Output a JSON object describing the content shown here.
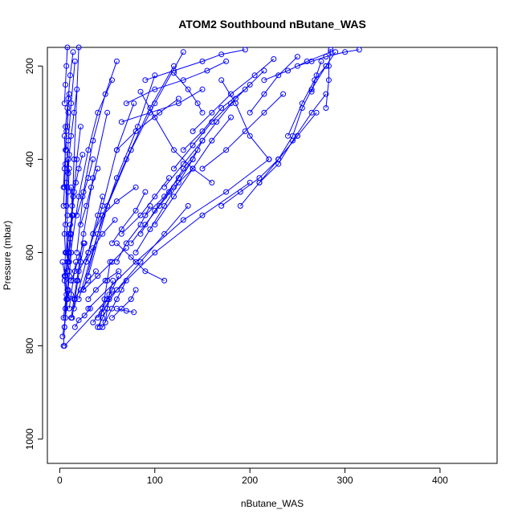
{
  "chart_data": {
    "type": "line",
    "title": "ATOM2 Southbound nButane_WAS",
    "xlabel": "nButane_WAS",
    "ylabel": "Pressure (mbar)",
    "xlim": [
      -13,
      460
    ],
    "ylim": [
      1052,
      160
    ],
    "y_reversed": true,
    "x_ticks": [
      0,
      100,
      200,
      300,
      400
    ],
    "y_ticks": [
      200,
      400,
      600,
      800,
      1000
    ],
    "grid": false,
    "marker": "open-circle",
    "color": "#0000ff",
    "series": [
      {
        "x": [
          4,
          5,
          6,
          8,
          3
        ],
        "y": [
          800,
          760,
          720,
          680,
          620
        ]
      },
      {
        "x": [
          3,
          6,
          7,
          5,
          9,
          12
        ],
        "y": [
          780,
          740,
          700,
          660,
          600,
          560
        ]
      },
      {
        "x": [
          5,
          8,
          10,
          7,
          11
        ],
        "y": [
          760,
          700,
          640,
          600,
          540
        ]
      },
      {
        "x": [
          6,
          9,
          8,
          10,
          13,
          15,
          20
        ],
        "y": [
          720,
          680,
          640,
          600,
          520,
          400,
          160
        ]
      },
      {
        "x": [
          4,
          7,
          6,
          8,
          9
        ],
        "y": [
          740,
          690,
          650,
          620,
          560
        ]
      },
      {
        "x": [
          8,
          10,
          12,
          11,
          14
        ],
        "y": [
          700,
          650,
          600,
          560,
          520
        ]
      },
      {
        "x": [
          5,
          6,
          5,
          7,
          8,
          9
        ],
        "y": [
          650,
          600,
          560,
          500,
          460,
          400
        ]
      },
      {
        "x": [
          9,
          11,
          13,
          12
        ],
        "y": [
          620,
          560,
          500,
          460
        ]
      },
      {
        "x": [
          4,
          5,
          6,
          5
        ],
        "y": [
          500,
          460,
          410,
          350
        ]
      },
      {
        "x": [
          7,
          8,
          9,
          10
        ],
        "y": [
          600,
          520,
          470,
          420
        ]
      },
      {
        "x": [
          11,
          13,
          15,
          18,
          22
        ],
        "y": [
          570,
          520,
          470,
          400,
          330
        ]
      },
      {
        "x": [
          6,
          7,
          9,
          12,
          16
        ],
        "y": [
          540,
          450,
          360,
          280,
          190
        ]
      },
      {
        "x": [
          10,
          12,
          14,
          17
        ],
        "y": [
          720,
          690,
          660,
          620
        ]
      },
      {
        "x": [
          13,
          16,
          19,
          22,
          26
        ],
        "y": [
          740,
          700,
          660,
          620,
          580
        ]
      },
      {
        "x": [
          5,
          6,
          7,
          8
        ],
        "y": [
          280,
          240,
          200,
          160
        ]
      },
      {
        "x": [
          8,
          9,
          11,
          14
        ],
        "y": [
          330,
          270,
          220,
          170
        ]
      },
      {
        "x": [
          7,
          6,
          8,
          10
        ],
        "y": [
          380,
          330,
          290,
          260
        ]
      },
      {
        "x": [
          9,
          10,
          12,
          15,
          18
        ],
        "y": [
          430,
          390,
          350,
          300,
          250
        ]
      },
      {
        "x": [
          4,
          5,
          6,
          7,
          9
        ],
        "y": [
          460,
          420,
          380,
          340,
          300
        ]
      },
      {
        "x": [
          12,
          18,
          25,
          35,
          50
        ],
        "y": [
          740,
          660,
          560,
          440,
          300
        ]
      },
      {
        "x": [
          15,
          30,
          45,
          60,
          78
        ],
        "y": [
          720,
          600,
          500,
          380,
          280
        ]
      },
      {
        "x": [
          20,
          40,
          60,
          82,
          100
        ],
        "y": [
          700,
          560,
          440,
          330,
          220
        ]
      },
      {
        "x": [
          25,
          45,
          70,
          95,
          120
        ],
        "y": [
          680,
          520,
          400,
          290,
          200
        ]
      },
      {
        "x": [
          30,
          50,
          75,
          100,
          130
        ],
        "y": [
          650,
          500,
          380,
          280,
          170
        ]
      },
      {
        "x": [
          10,
          20,
          30,
          40,
          55
        ],
        "y": [
          620,
          480,
          380,
          300,
          230
        ]
      },
      {
        "x": [
          18,
          25,
          35,
          48,
          60
        ],
        "y": [
          600,
          470,
          360,
          260,
          190
        ]
      },
      {
        "x": [
          40,
          45,
          50,
          52
        ],
        "y": [
          760,
          740,
          720,
          700
        ]
      },
      {
        "x": [
          42,
          44,
          47,
          50,
          53
        ],
        "y": [
          760,
          730,
          700,
          660,
          620
        ]
      },
      {
        "x": [
          45,
          55,
          60,
          65,
          70
        ],
        "y": [
          760,
          720,
          700,
          680,
          660
        ]
      },
      {
        "x": [
          35,
          45,
          55,
          62
        ],
        "y": [
          750,
          720,
          680,
          650
        ]
      },
      {
        "x": [
          48,
          50,
          52,
          56
        ],
        "y": [
          750,
          720,
          690,
          660
        ]
      },
      {
        "x": [
          55,
          65,
          75,
          80
        ],
        "y": [
          740,
          720,
          700,
          680
        ]
      },
      {
        "x": [
          60,
          70,
          78
        ],
        "y": [
          720,
          725,
          728
        ]
      },
      {
        "x": [
          110,
          90,
          75,
          60
        ],
        "y": [
          660,
          640,
          610,
          580
        ]
      },
      {
        "x": [
          60,
          70,
          85,
          95
        ],
        "y": [
          620,
          580,
          540,
          500
        ]
      },
      {
        "x": [
          55,
          65,
          80,
          90
        ],
        "y": [
          580,
          550,
          510,
          470
        ]
      },
      {
        "x": [
          65,
          85,
          100,
          115
        ],
        "y": [
          560,
          520,
          480,
          440
        ]
      },
      {
        "x": [
          75,
          90,
          105,
          120,
          140
        ],
        "y": [
          580,
          540,
          500,
          460,
          420
        ]
      },
      {
        "x": [
          90,
          110,
          125,
          140,
          150
        ],
        "y": [
          520,
          480,
          440,
          400,
          360
        ]
      },
      {
        "x": [
          85,
          100,
          115,
          130,
          145
        ],
        "y": [
          560,
          510,
          470,
          420,
          380
        ]
      },
      {
        "x": [
          80,
          95,
          110,
          125,
          140
        ],
        "y": [
          600,
          550,
          500,
          450,
          400
        ]
      },
      {
        "x": [
          100,
          120,
          140,
          160,
          180
        ],
        "y": [
          540,
          480,
          420,
          360,
          310
        ]
      },
      {
        "x": [
          110,
          130,
          150,
          165,
          185
        ],
        "y": [
          460,
          410,
          360,
          320,
          270
        ]
      },
      {
        "x": [
          120,
          140,
          160,
          180,
          200
        ],
        "y": [
          420,
          370,
          320,
          280,
          240
        ]
      },
      {
        "x": [
          130,
          150,
          170,
          195,
          215
        ],
        "y": [
          380,
          340,
          290,
          250,
          210
        ]
      },
      {
        "x": [
          140,
          160,
          180,
          205,
          225
        ],
        "y": [
          340,
          300,
          260,
          220,
          185
        ]
      },
      {
        "x": [
          85,
          100,
          120,
          140,
          160
        ],
        "y": [
          255,
          310,
          380,
          420,
          450
        ]
      },
      {
        "x": [
          65,
          95,
          125,
          150
        ],
        "y": [
          320,
          300,
          280,
          250
        ]
      },
      {
        "x": [
          70,
          100,
          130,
          155,
          175
        ],
        "y": [
          280,
          250,
          230,
          210,
          190
        ]
      },
      {
        "x": [
          90,
          120,
          150,
          170,
          195
        ],
        "y": [
          230,
          210,
          190,
          175,
          165
        ]
      },
      {
        "x": [
          60,
          80,
          105,
          125
        ],
        "y": [
          380,
          340,
          300,
          270
        ]
      },
      {
        "x": [
          120,
          135,
          145,
          150
        ],
        "y": [
          215,
          250,
          280,
          300
        ]
      },
      {
        "x": [
          150,
          175,
          195,
          215,
          235
        ],
        "y": [
          420,
          380,
          340,
          300,
          260
        ]
      },
      {
        "x": [
          170,
          185,
          200,
          220
        ],
        "y": [
          230,
          280,
          350,
          400
        ]
      },
      {
        "x": [
          170,
          190,
          210,
          230,
          250
        ],
        "y": [
          500,
          470,
          440,
          400,
          350
        ]
      },
      {
        "x": [
          190,
          210,
          230,
          250,
          270
        ],
        "y": [
          500,
          450,
          400,
          350,
          300
        ]
      },
      {
        "x": [
          210,
          230,
          245,
          265,
          280
        ],
        "y": [
          450,
          410,
          360,
          300,
          260
        ]
      },
      {
        "x": [
          230,
          245,
          255,
          265,
          280
        ],
        "y": [
          400,
          350,
          290,
          250,
          200
        ]
      },
      {
        "x": [
          240,
          255,
          268,
          280,
          290
        ],
        "y": [
          350,
          280,
          230,
          200,
          170
        ]
      },
      {
        "x": [
          200,
          215,
          230,
          250
        ],
        "y": [
          300,
          260,
          220,
          180
        ]
      },
      {
        "x": [
          215,
          240,
          260,
          285
        ],
        "y": [
          230,
          210,
          190,
          170
        ]
      },
      {
        "x": [
          250,
          265,
          280,
          300,
          315
        ],
        "y": [
          200,
          190,
          180,
          170,
          165
        ]
      },
      {
        "x": [
          280,
          283,
          283,
          285
        ],
        "y": [
          290,
          230,
          200,
          165
        ]
      },
      {
        "x": [
          265,
          270,
          275
        ],
        "y": [
          255,
          220,
          190
        ]
      },
      {
        "x": [
          5,
          50,
          100,
          150,
          200
        ],
        "y": [
          800,
          700,
          600,
          520,
          450
        ]
      },
      {
        "x": [
          30,
          80,
          130,
          175,
          220
        ],
        "y": [
          720,
          620,
          530,
          470,
          400
        ]
      },
      {
        "x": [
          40,
          60,
          85,
          110,
          135
        ],
        "y": [
          740,
          680,
          620,
          560,
          500
        ]
      },
      {
        "x": [
          25,
          40,
          55,
          70
        ],
        "y": [
          680,
          650,
          620,
          590
        ]
      },
      {
        "x": [
          15,
          22,
          30,
          38
        ],
        "y": [
          700,
          680,
          660,
          640
        ]
      },
      {
        "x": [
          12,
          16,
          20,
          25
        ],
        "y": [
          660,
          640,
          610,
          580
        ]
      },
      {
        "x": [
          20,
          30,
          35,
          40,
          45
        ],
        "y": [
          640,
          600,
          560,
          520,
          480
        ]
      },
      {
        "x": [
          35,
          45,
          60,
          80
        ],
        "y": [
          560,
          520,
          490,
          460
        ]
      },
      {
        "x": [
          28,
          35,
          45,
          58
        ],
        "y": [
          620,
          590,
          560,
          530
        ]
      },
      {
        "x": [
          22,
          28,
          33,
          40
        ],
        "y": [
          540,
          500,
          460,
          420
        ]
      },
      {
        "x": [
          18,
          24,
          30,
          35
        ],
        "y": [
          520,
          480,
          440,
          400
        ]
      },
      {
        "x": [
          14,
          17,
          20,
          24
        ],
        "y": [
          480,
          450,
          420,
          390
        ]
      },
      {
        "x": [
          30,
          38,
          48,
          62
        ],
        "y": [
          700,
          680,
          660,
          640
        ]
      },
      {
        "x": [
          16,
          20,
          26,
          32
        ],
        "y": [
          760,
          745,
          735,
          720
        ]
      }
    ]
  }
}
